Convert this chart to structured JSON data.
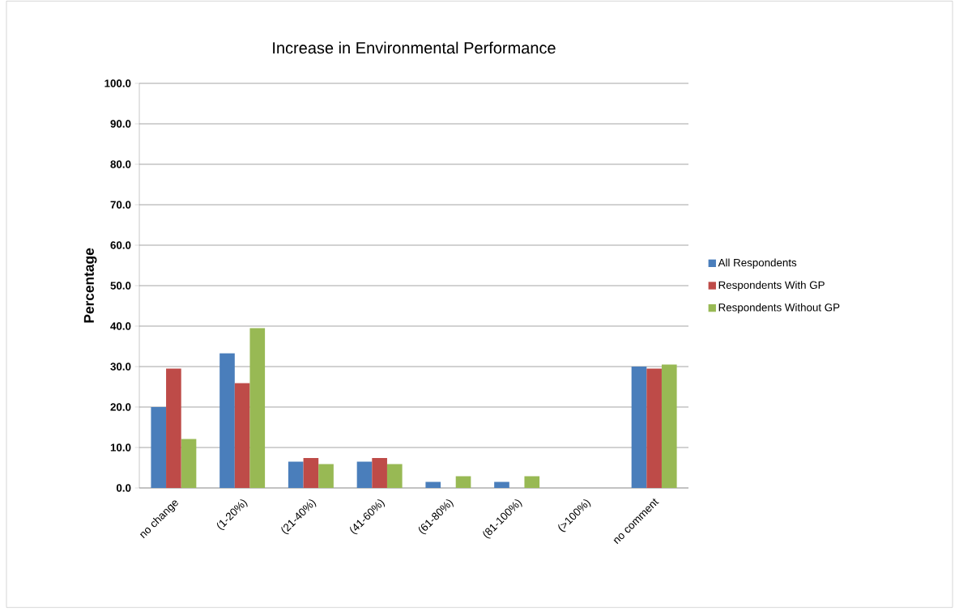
{
  "chart_data": {
    "type": "bar",
    "title": "Increase in Environmental Performance",
    "ylabel": "Percentage",
    "categories": [
      "no change",
      "(1-20%)",
      "(21-40%)",
      "(41-60%)",
      "(61-80%)",
      "(81-100%)",
      "(>100%)",
      "no comment"
    ],
    "series": [
      {
        "name": "All Respondents",
        "color": "#4a7ebb",
        "values": [
          20.0,
          33.3,
          6.5,
          6.5,
          1.5,
          1.5,
          0,
          30.0
        ]
      },
      {
        "name": "Respondents With GP",
        "color": "#be4b48",
        "values": [
          29.5,
          25.9,
          7.4,
          7.4,
          0,
          0,
          0,
          29.5
        ]
      },
      {
        "name": "Respondents Without GP",
        "color": "#98b954",
        "values": [
          12.1,
          39.5,
          5.9,
          5.9,
          2.9,
          2.9,
          0,
          30.5
        ]
      }
    ],
    "ylim": [
      0,
      100
    ],
    "yticks": [
      {
        "value": 0,
        "label": "0.0"
      },
      {
        "value": 10,
        "label": "10.0"
      },
      {
        "value": 20,
        "label": "20.0"
      },
      {
        "value": 30,
        "label": "30.0"
      },
      {
        "value": 40,
        "label": "40.0"
      },
      {
        "value": 50,
        "label": "50.0"
      },
      {
        "value": 60,
        "label": "60.0"
      },
      {
        "value": 70,
        "label": "70.0"
      },
      {
        "value": 80,
        "label": "80.0"
      },
      {
        "value": 90,
        "label": "90.0"
      },
      {
        "value": 100,
        "label": "100.0"
      }
    ],
    "grid": "y",
    "legend": "right"
  }
}
